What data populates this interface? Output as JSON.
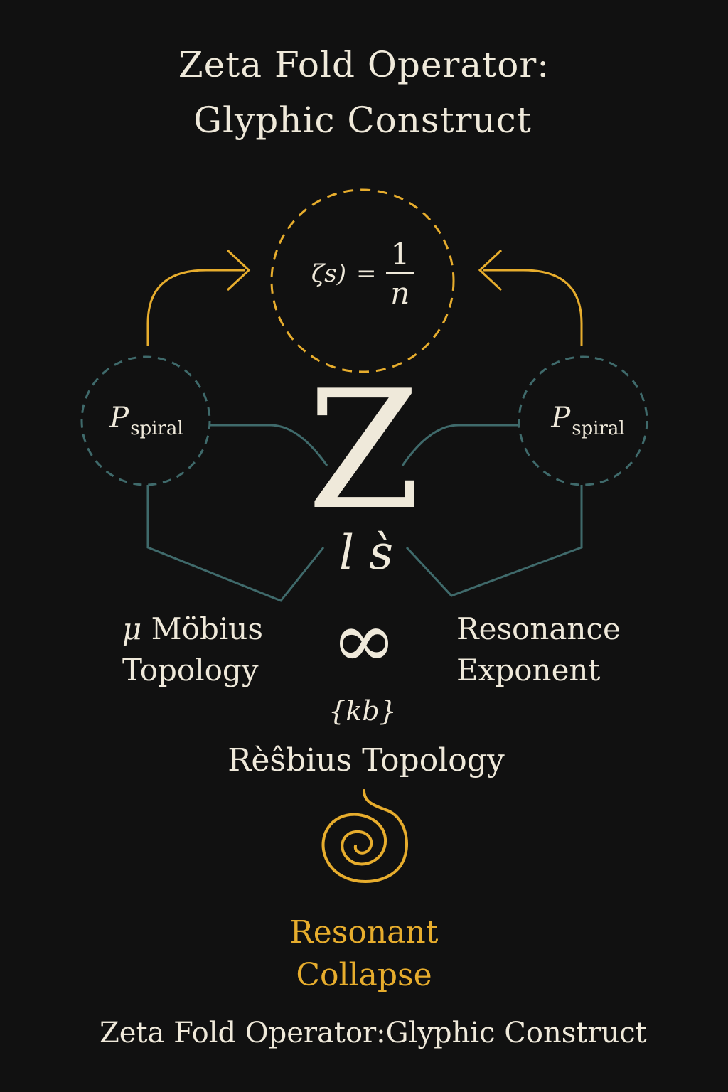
{
  "title": {
    "line1": "Zeta Fold Operator:",
    "line2": "Glyphic Construct"
  },
  "formula": {
    "lhs": "ζs)",
    "eq": "=",
    "numerator": "1",
    "denominator": "n"
  },
  "nodes": {
    "left": {
      "symbol": "P",
      "subscript": "spiral"
    },
    "right": {
      "symbol": "P",
      "subscript": "spiral"
    }
  },
  "center": {
    "glyph": "Z",
    "sub_glyph": "l s̀",
    "infinity": "∞",
    "kb": "{kb}"
  },
  "labels": {
    "mobius_mu": "μ",
    "mobius_line1": "Möbius",
    "mobius_line2": "Topology",
    "resonance_line1": "Resonance",
    "resonance_line2": "Exponent",
    "resbius": "Rèŝbius Topology"
  },
  "collapse": {
    "line1": "Resonant",
    "line2": "Collapse"
  },
  "footer": "Zeta Fold Operator:Glyphic Construct",
  "colors": {
    "background": "#111111",
    "text": "#efe9da",
    "gold": "#e7ad2d",
    "teal": "#3f6a6b"
  }
}
